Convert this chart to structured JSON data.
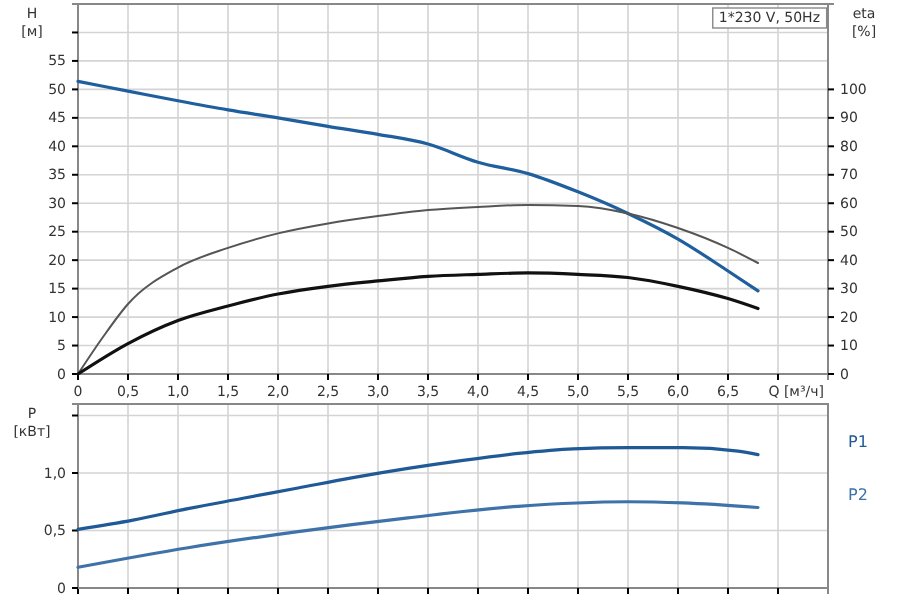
{
  "chart_data": [
    {
      "type": "line",
      "xlabel": "Q [м³/ч]",
      "ylabel": "H [м]",
      "y2label": "eta [%]",
      "annotations": [
        "1*230 V, 50Hz"
      ],
      "xlim": [
        0,
        7.5
      ],
      "xticks": [
        0,
        {
          "value": 0.5,
          "label": "0,5"
        },
        {
          "value": 1,
          "label": "1,0"
        },
        {
          "value": 1.5,
          "label": "1,5"
        },
        {
          "value": 2,
          "label": "2,0"
        },
        {
          "value": 2.5,
          "label": "2,5"
        },
        {
          "value": 3,
          "label": "3,0"
        },
        {
          "value": 3.5,
          "label": "3,5"
        },
        {
          "value": 4,
          "label": "4,0"
        },
        {
          "value": 4.5,
          "label": "4,5"
        },
        {
          "value": 5,
          "label": "5,0"
        },
        {
          "value": 5.5,
          "label": "5,5"
        },
        {
          "value": 6,
          "label": "6,0"
        },
        {
          "value": 6.5,
          "label": "6,5"
        },
        {
          "value": 7,
          "label": null
        }
      ],
      "ylim": [
        0,
        65
      ],
      "yticks": [
        0,
        5,
        10,
        15,
        20,
        25,
        30,
        35,
        40,
        45,
        50,
        55,
        {
          "value": 60,
          "label": null
        }
      ],
      "y2lim": [
        0,
        130
      ],
      "y2ticks": [
        0,
        10,
        20,
        30,
        40,
        50,
        60,
        70,
        80,
        90,
        100
      ],
      "grid": true,
      "series": [
        {
          "color": "#1f5f9e",
          "x": [
            0,
            0.5,
            1,
            1.5,
            2,
            2.5,
            3,
            3.5,
            4,
            4.5,
            5,
            5.5,
            6,
            6.5,
            6.8
          ],
          "values": [
            51.4,
            49.7,
            48,
            46.4,
            45,
            43.5,
            42.1,
            40.4,
            37.2,
            35.2,
            32,
            28.2,
            23.7,
            18.1,
            14.6
          ]
        },
        {
          "color": "#555555",
          "axis": "y2",
          "x": [
            0,
            0.25,
            0.5,
            1,
            1.5,
            2,
            2.5,
            3,
            3.5,
            4,
            4.5,
            5,
            5.5,
            6,
            6.5,
            6.8
          ],
          "values": [
            0,
            13,
            24.6,
            37.4,
            44.3,
            49.4,
            52.9,
            55.5,
            57.6,
            58.7,
            59.4,
            59,
            56.4,
            51.3,
            44.3,
            39
          ]
        },
        {
          "color": "#111111",
          "axis": "y2",
          "x": [
            0,
            0.5,
            1,
            1.5,
            2,
            2.5,
            3,
            3.5,
            4,
            4.5,
            5,
            5.5,
            6,
            6.5,
            6.8
          ],
          "values": [
            0,
            10.7,
            18.8,
            23.9,
            28.1,
            30.8,
            32.7,
            34.3,
            35,
            35.5,
            35,
            33.9,
            30.8,
            26.5,
            23
          ]
        }
      ]
    },
    {
      "type": "line",
      "ylabel": "P [кВт]",
      "tick_labels": "y",
      "grid": true,
      "xlim": [
        0,
        7.5
      ],
      "xticks": [
        0,
        0.5,
        1,
        1.5,
        2,
        2.5,
        3,
        3.5,
        4,
        4.5,
        5,
        5.5,
        6,
        6.5,
        7
      ],
      "ylim": [
        0,
        1.6
      ],
      "yticks": [
        0,
        {
          "value": 0.5,
          "label": "0,5"
        },
        {
          "value": 1,
          "label": "1,0"
        },
        {
          "value": 1.5,
          "label": null
        }
      ],
      "series": [
        {
          "name": "P1",
          "color": "#1f5a96",
          "x": [
            0,
            0.55,
            1.1,
            1.65,
            2.2,
            2.75,
            3.3,
            3.85,
            4.4,
            4.95,
            5.5,
            6.05,
            6.6,
            6.8
          ],
          "values": [
            0.51,
            0.59,
            0.69,
            0.78,
            0.87,
            0.96,
            1.04,
            1.11,
            1.17,
            1.21,
            1.22,
            1.22,
            1.19,
            1.16
          ]
        },
        {
          "name": "P2",
          "color": "#3f72a8",
          "x": [
            0,
            1.1,
            2.2,
            3.3,
            4.4,
            5.5,
            6.05,
            6.8
          ],
          "values": [
            0.18,
            0.35,
            0.49,
            0.61,
            0.71,
            0.75,
            0.74,
            0.7
          ]
        }
      ]
    }
  ]
}
